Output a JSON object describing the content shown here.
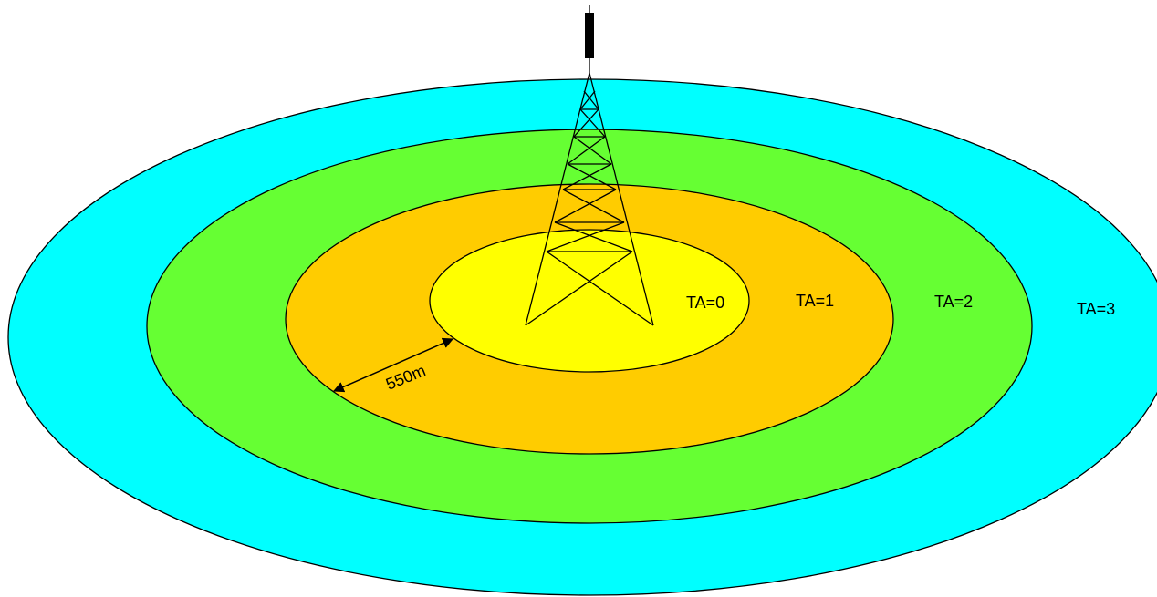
{
  "zones": [
    {
      "label": "TA=3",
      "color": "#00ffff"
    },
    {
      "label": "TA=2",
      "color": "#66ff33"
    },
    {
      "label": "TA=1",
      "color": "#ffcc00"
    },
    {
      "label": "TA=0",
      "color": "#ffff00"
    }
  ],
  "distance_label": "550m"
}
